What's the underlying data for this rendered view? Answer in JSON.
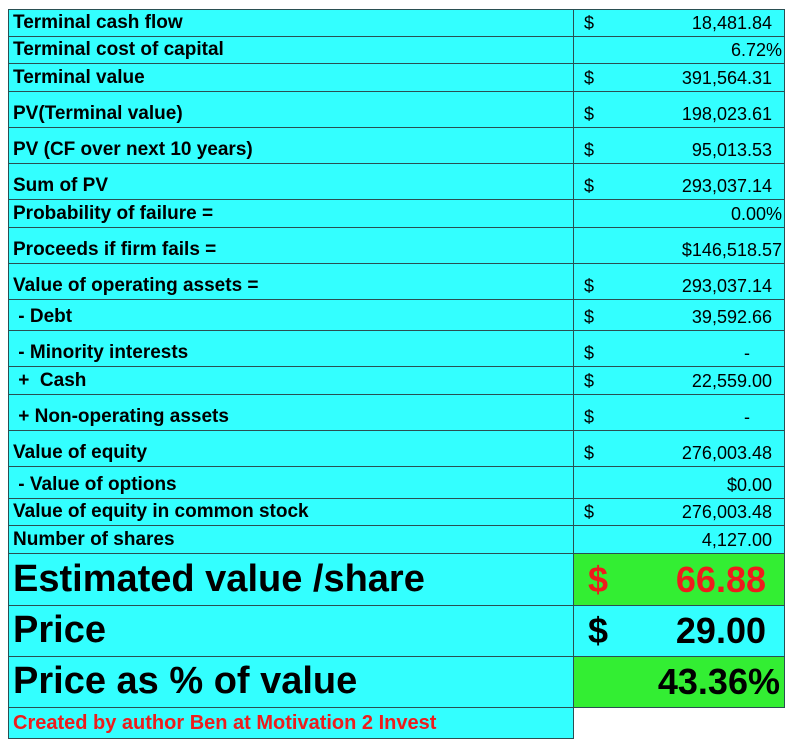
{
  "rows": [
    {
      "label": "Terminal cash flow",
      "currency": "$",
      "value": "18,481.84"
    },
    {
      "label": "Terminal cost of capital",
      "currency": "",
      "value": "6.72%"
    },
    {
      "label": "Terminal value",
      "currency": "$",
      "value": "391,564.31"
    },
    {
      "label": "PV(Terminal value)",
      "currency": "$",
      "value": "198,023.61"
    },
    {
      "label": "PV (CF over next 10 years)",
      "currency": "$",
      "value": "95,013.53"
    },
    {
      "label": "Sum of PV",
      "currency": "$",
      "value": "293,037.14"
    },
    {
      "label": "Probability of failure =",
      "currency": "",
      "value": "0.00%"
    },
    {
      "label": "Proceeds if firm fails =",
      "currency": "",
      "value": "$146,518.57"
    },
    {
      "label": "Value of operating assets =",
      "currency": "$",
      "value": "293,037.14"
    },
    {
      "label": " - Debt",
      "currency": "$",
      "value": "39,592.66"
    },
    {
      "label": " - Minority interests",
      "currency": "$",
      "value": "-"
    },
    {
      "label": " +  Cash",
      "currency": "$",
      "value": "22,559.00"
    },
    {
      "label": " + Non-operating assets",
      "currency": "$",
      "value": "-"
    },
    {
      "label": "Value of equity",
      "currency": "$",
      "value": "276,003.48"
    },
    {
      "label": " - Value of options",
      "currency": "",
      "value": "$0.00"
    },
    {
      "label": "Value of equity in common stock",
      "currency": "$",
      "value": "276,003.48"
    },
    {
      "label": "Number of shares",
      "currency": "",
      "value": "4,127.00"
    }
  ],
  "summary": {
    "estimated_value": {
      "label": "Estimated value /share",
      "currency": "$",
      "value": "66.88"
    },
    "price": {
      "label": "Price",
      "currency": "$",
      "value": "29.00"
    },
    "price_pct": {
      "label": "Price as % of value",
      "value": "43.36%"
    }
  },
  "footer": {
    "credit": "Created by author Ben at Motivation 2 Invest"
  },
  "colors": {
    "cell_bg": "#33ffff",
    "highlight": "#33ee33",
    "accent_red": "#ee1c1c"
  }
}
